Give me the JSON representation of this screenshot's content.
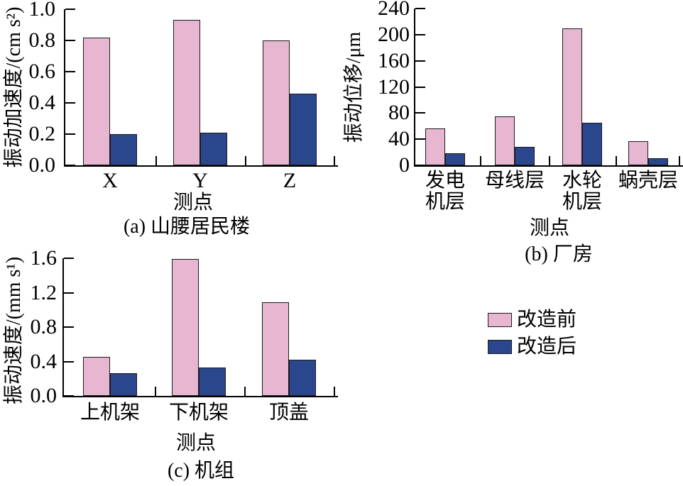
{
  "colors": {
    "before": "#E7B6D1",
    "after": "#2A468C",
    "axis": "#000000",
    "bar_border": "#1c1c1c",
    "background": "#ffffff"
  },
  "legend": {
    "position": "right-middle",
    "items": [
      {
        "label": "改造前",
        "color_key": "before"
      },
      {
        "label": "改造后",
        "color_key": "after"
      }
    ]
  },
  "chart_data": [
    {
      "id": "a",
      "type": "bar",
      "title": "(a) 山腰居民楼",
      "xlabel": "测点",
      "ylabel": "振动加速度/(cm s²)",
      "categories": [
        "X",
        "Y",
        "Z"
      ],
      "ylim": [
        0,
        1.0
      ],
      "yticks": [
        "0.0",
        "0.2",
        "0.4",
        "0.6",
        "0.8",
        "1.0"
      ],
      "grid": false,
      "legend_position": "shared-right",
      "series": [
        {
          "name": "改造前",
          "values": [
            0.82,
            0.93,
            0.8
          ]
        },
        {
          "name": "改造后",
          "values": [
            0.2,
            0.21,
            0.46
          ]
        }
      ]
    },
    {
      "id": "b",
      "type": "bar",
      "title": "(b) 厂房",
      "xlabel": "测点",
      "ylabel": "振动位移/μm",
      "categories": [
        "发电机层",
        "母线层",
        "水轮机层",
        "蜗壳层"
      ],
      "categories_display": [
        "发电\n机层",
        "母线层",
        "水轮\n机层",
        "蜗壳层"
      ],
      "ylim": [
        0,
        240
      ],
      "yticks": [
        "0",
        "40",
        "80",
        "120",
        "160",
        "200",
        "240"
      ],
      "grid": false,
      "legend_position": "shared-right",
      "series": [
        {
          "name": "改造前",
          "values": [
            57,
            75,
            210,
            37
          ]
        },
        {
          "name": "改造后",
          "values": [
            18,
            28,
            65,
            11
          ]
        }
      ]
    },
    {
      "id": "c",
      "type": "bar",
      "title": "(c) 机组",
      "xlabel": "测点",
      "ylabel": "振动速度/(mm s¹)",
      "categories": [
        "上机架",
        "下机架",
        "顶盖"
      ],
      "ylim": [
        0,
        1.6
      ],
      "yticks": [
        "0.0",
        "0.4",
        "0.8",
        "1.2",
        "1.6"
      ],
      "grid": false,
      "legend_position": "shared-right",
      "series": [
        {
          "name": "改造前",
          "values": [
            0.45,
            1.59,
            1.09
          ]
        },
        {
          "name": "改造后",
          "values": [
            0.26,
            0.33,
            0.42
          ]
        }
      ]
    }
  ]
}
